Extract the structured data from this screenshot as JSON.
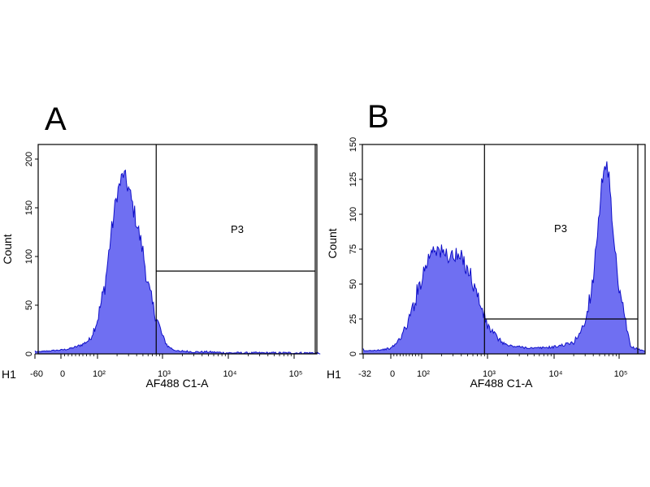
{
  "chart_data": [
    {
      "type": "area",
      "panel": "A",
      "title": "",
      "xlabel": "AF488 C1-A",
      "ylabel": "Count",
      "h_label": "H1",
      "x_scale": "biexponential-log",
      "x_ticks": [
        "-60",
        "0",
        "10²",
        "10³",
        "10⁴",
        "10⁵"
      ],
      "y_ticks": [
        0,
        50,
        100,
        150,
        200
      ],
      "ylim": [
        0,
        215
      ],
      "gate": {
        "name": "P3",
        "from": 800,
        "to": 250000,
        "level": 85
      },
      "x": [
        -60,
        -30,
        0,
        20,
        40,
        60,
        80,
        100,
        130,
        160,
        200,
        250,
        300,
        400,
        500,
        600,
        700,
        800,
        900,
        1000,
        1200,
        1500,
        2000,
        3000,
        5000,
        10000,
        30000,
        100000,
        250000
      ],
      "values": [
        2,
        3,
        4,
        5,
        7,
        10,
        15,
        35,
        70,
        120,
        165,
        185,
        170,
        135,
        105,
        70,
        50,
        38,
        28,
        18,
        8,
        4,
        2,
        1,
        1,
        0,
        0,
        0,
        0
      ]
    },
    {
      "type": "area",
      "panel": "B",
      "title": "",
      "xlabel": "AF488 C1-A",
      "ylabel": "Count",
      "h_label": "H1",
      "x_scale": "biexponential-log",
      "x_ticks": [
        "-32",
        "0",
        "10²",
        "10³",
        "10⁴",
        "10⁵"
      ],
      "y_ticks": [
        0,
        25,
        50,
        75,
        100,
        125,
        150
      ],
      "ylim": [
        0,
        150
      ],
      "gate": {
        "name": "P3",
        "from": 900,
        "to": 250000,
        "level": 25
      },
      "x": [
        -32,
        -10,
        0,
        20,
        40,
        60,
        100,
        150,
        200,
        300,
        400,
        500,
        700,
        1000,
        1500,
        2000,
        3000,
        5000,
        10000,
        20000,
        30000,
        40000,
        50000,
        60000,
        70000,
        80000,
        100000,
        150000,
        250000
      ],
      "values": [
        2,
        3,
        4,
        8,
        15,
        25,
        55,
        78,
        72,
        70,
        68,
        62,
        42,
        20,
        10,
        6,
        5,
        4,
        5,
        8,
        22,
        55,
        105,
        140,
        125,
        85,
        45,
        5,
        2
      ]
    }
  ]
}
